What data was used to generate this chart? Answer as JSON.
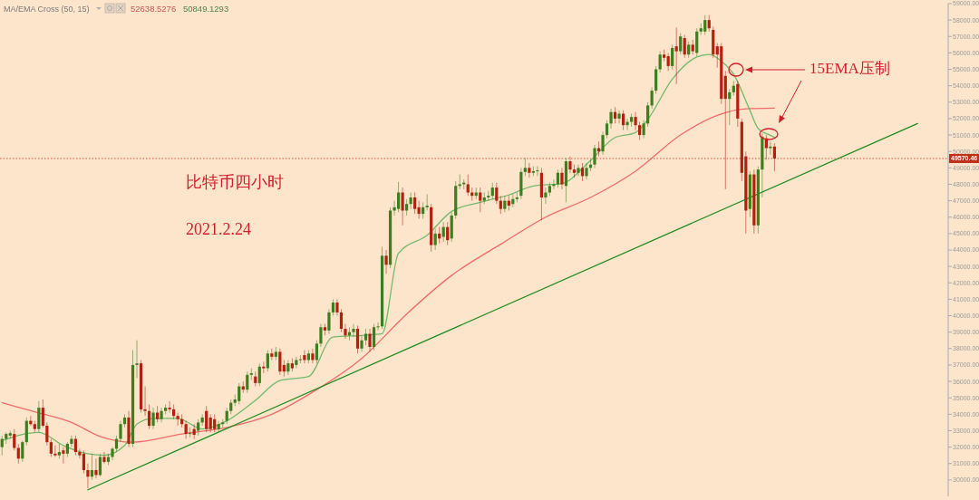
{
  "chart_data": {
    "type": "candlestick",
    "categories": [
      null,
      null,
      null,
      null,
      null,
      null,
      null,
      null,
      null,
      null,
      null,
      null,
      null,
      null,
      null,
      null,
      null,
      null,
      null,
      null,
      null,
      null,
      null,
      null,
      null,
      null,
      null,
      null,
      null,
      null,
      null,
      null,
      null,
      null,
      null,
      null,
      null,
      null,
      null,
      null,
      null,
      null,
      null,
      null,
      null,
      null,
      null,
      null,
      null,
      null,
      null,
      null,
      null,
      null,
      null,
      null,
      null,
      null,
      null,
      null,
      null,
      null,
      null,
      null,
      null,
      null,
      null,
      null,
      null,
      null,
      null,
      null,
      null,
      null,
      null,
      null,
      null,
      null,
      null,
      null,
      null,
      null,
      null,
      null,
      null,
      null,
      null,
      null,
      null,
      null,
      null,
      null,
      null,
      null,
      null,
      null,
      null,
      null,
      null,
      null,
      null,
      null,
      null,
      null,
      null,
      null,
      null,
      null,
      null,
      null,
      null,
      null,
      null,
      null,
      null,
      null,
      null,
      null,
      null,
      null,
      null,
      null,
      null,
      null,
      null,
      null,
      null,
      null,
      null,
      null,
      null,
      null,
      null,
      null,
      null,
      null,
      null,
      null,
      null,
      null,
      null,
      null,
      null,
      null,
      null,
      null,
      null,
      null,
      null,
      null,
      null,
      null,
      null,
      null,
      null,
      null,
      null,
      null,
      null,
      null,
      null,
      null,
      null,
      null,
      null,
      null,
      null,
      null,
      null,
      null,
      null,
      null,
      null,
      null,
      null,
      null,
      null,
      null,
      null,
      null,
      null,
      null,
      null,
      null,
      null,
      null,
      null,
      null,
      null,
      null,
      null,
      null,
      null,
      null,
      null,
      null,
      null,
      null,
      null,
      null,
      null,
      null,
      null,
      null,
      null,
      null,
      null,
      null,
      null,
      null,
      null,
      null,
      null,
      null,
      null,
      null,
      null,
      null,
      null,
      null,
      null,
      null,
      null,
      null,
      null,
      null,
      null,
      null,
      null,
      null,
      null,
      null
    ],
    "ohlc": [
      [
        32000,
        32700,
        31500,
        32500
      ],
      [
        32500,
        32900,
        32200,
        32800
      ],
      [
        32700,
        33000,
        32500,
        32850
      ],
      [
        32800,
        33100,
        31800,
        31950
      ],
      [
        31950,
        32200,
        31000,
        31300
      ],
      [
        31300,
        32400,
        31100,
        32300
      ],
      [
        32300,
        33800,
        32100,
        33600
      ],
      [
        33600,
        33900,
        33300,
        33400
      ],
      [
        33400,
        33600,
        32900,
        33100
      ],
      [
        33100,
        34800,
        32900,
        34400
      ],
      [
        34400,
        34900,
        33200,
        33300
      ],
      [
        33300,
        33500,
        32100,
        32300
      ],
      [
        32300,
        32500,
        31400,
        31600
      ],
      [
        31600,
        32100,
        31400,
        31500
      ],
      [
        31500,
        32200,
        31300,
        31700
      ],
      [
        31800,
        32000,
        31000,
        31600
      ],
      [
        31600,
        32300,
        31400,
        32200
      ],
      [
        32200,
        32700,
        32000,
        32500
      ],
      [
        32500,
        32700,
        31500,
        31700
      ],
      [
        31700,
        31900,
        31300,
        31500
      ],
      [
        31600,
        31800,
        30400,
        30600
      ],
      [
        30600,
        31000,
        29500,
        30200
      ],
      [
        30200,
        31600,
        30000,
        30600
      ],
      [
        30600,
        31300,
        30100,
        30300
      ],
      [
        30300,
        31600,
        30200,
        31400
      ],
      [
        31400,
        31700,
        31000,
        31100
      ],
      [
        31100,
        31600,
        30900,
        31400
      ],
      [
        31400,
        32000,
        31200,
        31900
      ],
      [
        31900,
        32700,
        31700,
        32500
      ],
      [
        32500,
        33600,
        32300,
        33400
      ],
      [
        33400,
        34000,
        33200,
        33800
      ],
      [
        33800,
        34200,
        32000,
        32200
      ],
      [
        32200,
        37900,
        32000,
        37000
      ],
      [
        37000,
        38500,
        36200,
        37100
      ],
      [
        37100,
        37300,
        34100,
        34300
      ],
      [
        34300,
        35700,
        33900,
        34200
      ],
      [
        34200,
        34600,
        33100,
        33300
      ],
      [
        33300,
        34400,
        33100,
        34100
      ],
      [
        34100,
        34500,
        33500,
        33700
      ],
      [
        33700,
        34400,
        33500,
        34200
      ],
      [
        34200,
        34600,
        34000,
        34400
      ],
      [
        34400,
        34800,
        34100,
        34300
      ],
      [
        34300,
        34600,
        33700,
        33900
      ],
      [
        33900,
        34100,
        33300,
        33700
      ],
      [
        33700,
        34000,
        33200,
        33400
      ],
      [
        33400,
        33600,
        32500,
        32800
      ],
      [
        32800,
        33200,
        32600,
        32850
      ],
      [
        33100,
        33400,
        32500,
        32750
      ],
      [
        33000,
        33700,
        32700,
        33500
      ],
      [
        33500,
        34000,
        33300,
        33800
      ],
      [
        34200,
        34500,
        32900,
        33100
      ],
      [
        33800,
        34000,
        32900,
        33100
      ],
      [
        33700,
        34000,
        32900,
        33100
      ],
      [
        33100,
        33600,
        32900,
        33400
      ],
      [
        33400,
        33700,
        33200,
        33500
      ],
      [
        33600,
        34400,
        33400,
        34200
      ],
      [
        34200,
        34900,
        34000,
        34700
      ],
      [
        34700,
        35200,
        34500,
        34900
      ],
      [
        34800,
        35900,
        34600,
        35700
      ],
      [
        35700,
        36000,
        35300,
        35500
      ],
      [
        35500,
        36600,
        35300,
        36400
      ],
      [
        36400,
        36800,
        36100,
        36500
      ],
      [
        36300,
        36600,
        35700,
        35900
      ],
      [
        35900,
        37100,
        35700,
        36900
      ],
      [
        36900,
        37200,
        36500,
        36800
      ],
      [
        36800,
        37900,
        36600,
        37700
      ],
      [
        37700,
        38000,
        37300,
        37500
      ],
      [
        37500,
        38100,
        37300,
        37800
      ],
      [
        37800,
        38000,
        36400,
        36600
      ],
      [
        37000,
        37300,
        36300,
        36600
      ],
      [
        36600,
        37300,
        36400,
        37100
      ],
      [
        37100,
        37400,
        36600,
        36800
      ],
      [
        37000,
        37500,
        36800,
        37300
      ],
      [
        37300,
        37600,
        37100,
        37350
      ],
      [
        37600,
        37900,
        37100,
        37300
      ],
      [
        37300,
        37900,
        37100,
        37700
      ],
      [
        37700,
        38000,
        37100,
        37300
      ],
      [
        37300,
        38500,
        37100,
        38300
      ],
      [
        38300,
        39500,
        38100,
        39300
      ],
      [
        39300,
        39500,
        38800,
        39100
      ],
      [
        39100,
        40400,
        38900,
        40200
      ],
      [
        40200,
        41000,
        40000,
        40800
      ],
      [
        40800,
        41000,
        40000,
        40200
      ],
      [
        40200,
        40400,
        39000,
        39200
      ],
      [
        39200,
        39500,
        38600,
        38800
      ],
      [
        38800,
        39300,
        38500,
        39000
      ],
      [
        39000,
        39500,
        38700,
        39200
      ],
      [
        39200,
        39400,
        37700,
        38000
      ],
      [
        38000,
        38800,
        37800,
        38500
      ],
      [
        38500,
        39200,
        38200,
        38900
      ],
      [
        38900,
        39200,
        37800,
        38100
      ],
      [
        38100,
        39500,
        37900,
        39300
      ],
      [
        39300,
        39600,
        39100,
        39350
      ],
      [
        39350,
        44200,
        39200,
        43650
      ],
      [
        43650,
        44000,
        42550,
        43100
      ],
      [
        43100,
        46600,
        42900,
        46400
      ],
      [
        46400,
        47000,
        46100,
        46600
      ],
      [
        46500,
        48150,
        46300,
        47500
      ],
      [
        47500,
        47800,
        45500,
        46400
      ],
      [
        46400,
        47100,
        46100,
        46800
      ],
      [
        46800,
        47500,
        46500,
        47200
      ],
      [
        47200,
        47500,
        46200,
        46500
      ],
      [
        46600,
        47000,
        45900,
        46200
      ],
      [
        46200,
        46900,
        45900,
        46600
      ],
      [
        46600,
        47400,
        46400,
        46700
      ],
      [
        46600,
        46800,
        43900,
        44300
      ],
      [
        44300,
        45300,
        44000,
        45000
      ],
      [
        45000,
        45400,
        44400,
        44700
      ],
      [
        44800,
        45700,
        44500,
        45400
      ],
      [
        45400,
        45700,
        44300,
        44600
      ],
      [
        44700,
        46300,
        44500,
        46100
      ],
      [
        46100,
        48200,
        45900,
        47900
      ],
      [
        47900,
        48600,
        47700,
        48000
      ],
      [
        48000,
        48300,
        47700,
        48100
      ],
      [
        48000,
        48600,
        47300,
        47500
      ],
      [
        47500,
        47800,
        47000,
        47300
      ],
      [
        47300,
        47800,
        47100,
        47500
      ],
      [
        47500,
        47800,
        46300,
        47000
      ],
      [
        47000,
        47500,
        46800,
        47200
      ],
      [
        47200,
        47600,
        47000,
        47300
      ],
      [
        47300,
        48100,
        47100,
        47800
      ],
      [
        47800,
        48100,
        46800,
        47000
      ],
      [
        47000,
        47300,
        46200,
        46500
      ],
      [
        46500,
        47300,
        46300,
        47000
      ],
      [
        47000,
        47300,
        46400,
        46700
      ],
      [
        46800,
        47400,
        46600,
        47100
      ],
      [
        47100,
        47500,
        46900,
        47200
      ],
      [
        47300,
        49000,
        47100,
        48750
      ],
      [
        48750,
        49600,
        48500,
        49000
      ],
      [
        49000,
        49300,
        48400,
        48700
      ],
      [
        48700,
        49100,
        48500,
        48800
      ],
      [
        48800,
        49100,
        48500,
        48850
      ],
      [
        48700,
        49000,
        45800,
        47200
      ],
      [
        47200,
        47800,
        46800,
        47500
      ],
      [
        47500,
        48100,
        47300,
        47900
      ],
      [
        47900,
        48300,
        47700,
        48000
      ],
      [
        48000,
        48900,
        47800,
        48700
      ],
      [
        48700,
        49000,
        47700,
        48000
      ],
      [
        47900,
        49600,
        46900,
        49400
      ],
      [
        49400,
        49700,
        48700,
        48900
      ],
      [
        48900,
        49200,
        48400,
        48700
      ],
      [
        48700,
        49200,
        48500,
        49000
      ],
      [
        49000,
        49300,
        48200,
        48500
      ],
      [
        48500,
        49300,
        48300,
        49000
      ],
      [
        49000,
        49500,
        48800,
        49200
      ],
      [
        49200,
        50400,
        49000,
        50200
      ],
      [
        50200,
        50600,
        49700,
        50000
      ],
      [
        50000,
        51200,
        49800,
        51000
      ],
      [
        51000,
        51900,
        50800,
        51700
      ],
      [
        51700,
        52600,
        51400,
        52400
      ],
      [
        52400,
        52700,
        51700,
        52000
      ],
      [
        52000,
        52500,
        51700,
        52300
      ],
      [
        52300,
        52500,
        51300,
        51600
      ],
      [
        51600,
        52000,
        51300,
        51800
      ],
      [
        51800,
        52300,
        51500,
        52100
      ],
      [
        52100,
        52400,
        51300,
        51600
      ],
      [
        51600,
        51800,
        50700,
        51000
      ],
      [
        51000,
        51900,
        50800,
        51700
      ],
      [
        51700,
        53000,
        51500,
        52800
      ],
      [
        52800,
        53900,
        52600,
        53700
      ],
      [
        53700,
        55200,
        53500,
        55000
      ],
      [
        55000,
        56100,
        54800,
        55900
      ],
      [
        55900,
        56200,
        55500,
        55700
      ],
      [
        55800,
        56000,
        54900,
        55200
      ],
      [
        55200,
        56500,
        55000,
        56300
      ],
      [
        56400,
        57550,
        54100,
        56100
      ],
      [
        56100,
        57200,
        55900,
        57000
      ],
      [
        56900,
        57100,
        55700,
        55900
      ],
      [
        55900,
        56700,
        55700,
        56500
      ],
      [
        56500,
        56800,
        55900,
        56100
      ],
      [
        56000,
        57500,
        55800,
        57300
      ],
      [
        57300,
        57800,
        57100,
        57500
      ],
      [
        57300,
        58300,
        57100,
        58000
      ],
      [
        58000,
        58300,
        57300,
        57500
      ],
      [
        57400,
        57600,
        55700,
        55900
      ],
      [
        56400,
        56600,
        55100,
        55900
      ],
      [
        56400,
        56600,
        52900,
        53200
      ],
      [
        54600,
        54900,
        47700,
        53200
      ],
      [
        53200,
        53800,
        51600,
        53600
      ],
      [
        53600,
        54300,
        53400,
        54000
      ],
      [
        54100,
        54300,
        51500,
        52000
      ],
      [
        51800,
        52000,
        48200,
        48700
      ],
      [
        49700,
        50000,
        45000,
        46400
      ],
      [
        46500,
        48800,
        46000,
        48600
      ],
      [
        48600,
        48900,
        45000,
        45500
      ],
      [
        45500,
        49100,
        45000,
        48900
      ],
      [
        48900,
        51100,
        47200,
        50900
      ],
      [
        50800,
        51000,
        49500,
        50200
      ],
      [
        50200,
        50600,
        49800,
        50300
      ],
      [
        50300,
        50500,
        48800,
        49570.46
      ],
      null,
      null,
      null,
      null,
      null,
      null,
      null,
      null,
      null,
      null,
      null,
      null,
      null,
      null,
      null,
      null,
      null,
      null,
      null,
      null,
      null,
      null,
      null,
      null,
      null,
      null,
      null,
      null,
      null,
      null,
      null,
      null,
      null,
      null,
      null,
      null,
      null,
      null,
      null,
      null,
      null,
      null
    ],
    "series": [
      {
        "type": "line",
        "color": "#f26b6b",
        "values": [
          34700,
          null,
          null,
          null,
          null,
          null,
          null,
          null,
          34150,
          null,
          null,
          null,
          null,
          null,
          null,
          null,
          null,
          33500,
          null,
          null,
          null,
          null,
          null,
          null,
          32650,
          null,
          null,
          null,
          null,
          null,
          null,
          null,
          32300,
          null,
          null,
          null,
          null,
          null,
          null,
          null,
          null,
          null,
          null,
          null,
          32800,
          null,
          null,
          null,
          null,
          null,
          null,
          null,
          null,
          null,
          null,
          33200,
          null,
          null,
          null,
          null,
          null,
          null,
          null,
          null,
          null,
          null,
          34000,
          null,
          null,
          null,
          null,
          null,
          null,
          null,
          null,
          null,
          null,
          35500,
          null,
          null,
          null,
          null,
          null,
          null,
          null,
          null,
          null,
          null,
          37400,
          null,
          null,
          null,
          null,
          null,
          null,
          null,
          null,
          null,
          null,
          40100,
          null,
          null,
          null,
          null,
          null,
          null,
          null,
          null,
          null,
          null,
          42450,
          null,
          null,
          null,
          null,
          null,
          null,
          null,
          null,
          null,
          null,
          null,
          44350,
          null,
          null,
          null,
          null,
          null,
          null,
          null,
          null,
          null,
          null,
          46000,
          null,
          null,
          null,
          null,
          null,
          null,
          null,
          null,
          null,
          null,
          47200,
          null,
          null,
          null,
          null,
          null,
          null,
          null,
          null,
          null,
          null,
          48800,
          null,
          null,
          null,
          null,
          null,
          null,
          null,
          null,
          null,
          null,
          51000,
          null,
          null,
          null,
          null,
          null,
          null,
          null,
          null,
          52200,
          null,
          null,
          null,
          null,
          null,
          null,
          52600,
          null,
          null,
          null,
          null,
          null,
          null,
          52640,
          null,
          null,
          null,
          null,
          null,
          null,
          null,
          null,
          null,
          null,
          null,
          null,
          null,
          null,
          null,
          null,
          null,
          null,
          null,
          null,
          null,
          null,
          null,
          null,
          null,
          null,
          null,
          null,
          null,
          null,
          null,
          null,
          null,
          null,
          null,
          null,
          null,
          null,
          null,
          null,
          null,
          null
        ]
      },
      {
        "type": "line",
        "color": "#74b96a",
        "values": [
          32400,
          null,
          null,
          null,
          null,
          null,
          null,
          null,
          null,
          32900,
          null,
          null,
          null,
          null,
          null,
          32100,
          null,
          null,
          null,
          null,
          null,
          31600,
          null,
          null,
          null,
          31500,
          null,
          null,
          null,
          null,
          32100,
          null,
          null,
          33400,
          null,
          null,
          null,
          33750,
          null,
          null,
          null,
          null,
          null,
          33750,
          null,
          null,
          null,
          null,
          null,
          33100,
          null,
          null,
          null,
          null,
          null,
          33600,
          null,
          null,
          null,
          null,
          null,
          null,
          34850,
          null,
          null,
          null,
          null,
          null,
          36050,
          null,
          null,
          null,
          null,
          null,
          null,
          36300,
          null,
          null,
          null,
          null,
          null,
          38700,
          null,
          null,
          null,
          null,
          null,
          null,
          38800,
          null,
          null,
          null,
          null,
          38900,
          null,
          null,
          null,
          43800,
          null,
          null,
          null,
          null,
          null,
          null,
          44900,
          null,
          null,
          null,
          null,
          null,
          46350,
          null,
          null,
          null,
          null,
          null,
          null,
          46900,
          null,
          null,
          null,
          null,
          null,
          null,
          47350,
          null,
          null,
          null,
          null,
          null,
          47900,
          null,
          null,
          null,
          null,
          null,
          null,
          48050,
          null,
          null,
          null,
          null,
          null,
          null,
          49450,
          null,
          null,
          null,
          null,
          null,
          50850,
          null,
          null,
          null,
          null,
          51150,
          null,
          null,
          51950,
          null,
          null,
          null,
          null,
          null,
          54400,
          null,
          null,
          null,
          null,
          null,
          55750,
          null,
          null,
          55900,
          null,
          null,
          55500,
          null,
          null,
          54700,
          null,
          null,
          null,
          52500,
          null,
          51400,
          null,
          null,
          50980,
          50850,
          null,
          null,
          null,
          null,
          null,
          null,
          null,
          null,
          null,
          null,
          null,
          null,
          null,
          null,
          null,
          null,
          null,
          null,
          null,
          null,
          null,
          null,
          null,
          null,
          null,
          null,
          null,
          null,
          null,
          null,
          null,
          null,
          null,
          null,
          null,
          null,
          null,
          null,
          null,
          null,
          null,
          null
        ]
      },
      {
        "type": "line",
        "color": "#1f8c1f",
        "values": [
          null,
          null,
          null,
          null,
          null,
          null,
          null,
          null,
          null,
          null,
          null,
          null,
          null,
          null,
          null,
          null,
          null,
          null,
          null,
          null,
          null,
          29400,
          null,
          null,
          null,
          null,
          null,
          null,
          null,
          null,
          null,
          null,
          null,
          null,
          null,
          null,
          null,
          null,
          null,
          null,
          null,
          null,
          null,
          null,
          null,
          null,
          null,
          null,
          null,
          null,
          null,
          null,
          null,
          null,
          null,
          null,
          null,
          null,
          null,
          null,
          null,
          null,
          null,
          null,
          null,
          null,
          null,
          null,
          null,
          null,
          null,
          null,
          null,
          null,
          null,
          null,
          null,
          null,
          null,
          null,
          null,
          null,
          null,
          null,
          null,
          null,
          null,
          null,
          null,
          null,
          null,
          null,
          null,
          null,
          null,
          null,
          null,
          null,
          null,
          null,
          null,
          null,
          null,
          null,
          null,
          null,
          null,
          null,
          null,
          null,
          null,
          null,
          null,
          null,
          null,
          null,
          null,
          null,
          null,
          null,
          null,
          null,
          null,
          null,
          null,
          null,
          null,
          null,
          null,
          null,
          null,
          null,
          null,
          null,
          null,
          null,
          null,
          null,
          null,
          null,
          null,
          null,
          null,
          null,
          null,
          null,
          null,
          null,
          null,
          null,
          null,
          null,
          null,
          null,
          null,
          null,
          null,
          null,
          null,
          null,
          null,
          null,
          null,
          null,
          null,
          null,
          null,
          null,
          null,
          null,
          null,
          null,
          null,
          null,
          null,
          null,
          null,
          null,
          null,
          null,
          null,
          null,
          null,
          null,
          null,
          null,
          null,
          null,
          null,
          null,
          null,
          null,
          null,
          null,
          null,
          null,
          null,
          null,
          null,
          null,
          null,
          null,
          null,
          null,
          null,
          null,
          null,
          null,
          null,
          null,
          null,
          null,
          null,
          null,
          null,
          null,
          null,
          null,
          null,
          null,
          null,
          null,
          null,
          null,
          51700,
          null,
          null,
          null,
          null,
          null,
          null,
          null
        ]
      }
    ],
    "ylim": [
      29000,
      59000
    ],
    "yticks": [
      {
        "value": 30000,
        "label": "30000.00"
      },
      {
        "value": 31000,
        "label": "31000.00"
      },
      {
        "value": 32000,
        "label": "32000.00"
      },
      {
        "value": 33000,
        "label": "33000.00"
      },
      {
        "value": 34000,
        "label": "34000.00"
      },
      {
        "value": 35000,
        "label": "35000.00"
      },
      {
        "value": 36000,
        "label": "36000.00"
      },
      {
        "value": 37000,
        "label": "37000.00"
      },
      {
        "value": 38000,
        "label": "38000.00"
      },
      {
        "value": 39000,
        "label": "39000.00"
      },
      {
        "value": 40000,
        "label": "40000.00"
      },
      {
        "value": 41000,
        "label": "41000.00"
      },
      {
        "value": 42000,
        "label": "42000.00"
      },
      {
        "value": 43000,
        "label": "43000.00"
      },
      {
        "value": 44000,
        "label": "44000.00"
      },
      {
        "value": 45000,
        "label": "45000.00"
      },
      {
        "value": 46000,
        "label": "46000.00"
      },
      {
        "value": 47000,
        "label": "47000.00"
      },
      {
        "value": 48000,
        "label": "48000.00"
      },
      {
        "value": 49000,
        "label": "49000.00"
      },
      {
        "value": 50000,
        "label": "50000.00"
      },
      {
        "value": 51000,
        "label": "51000.00"
      },
      {
        "value": 52000,
        "label": "52000.00"
      },
      {
        "value": 53000,
        "label": "53000.00"
      },
      {
        "value": 54000,
        "label": "54000.00"
      },
      {
        "value": 55000,
        "label": "55000.00"
      },
      {
        "value": 56000,
        "label": "56000.00"
      },
      {
        "value": 57000,
        "label": "57000.00"
      },
      {
        "value": 58000,
        "label": "58000.00"
      },
      {
        "value": 59000,
        "label": "59000.00"
      }
    ],
    "ref_lines": [
      {
        "axis": "y",
        "value": 49570.46,
        "label": "49570.46",
        "color": "#c0301a",
        "line_style": "dotted"
      }
    ],
    "annotations": [
      "MA/EMA Cross (50, 15)",
      "52638.5276",
      "50849.1293",
      "比特币四小时",
      "2021.2.24",
      "15EMA压制"
    ]
  }
}
